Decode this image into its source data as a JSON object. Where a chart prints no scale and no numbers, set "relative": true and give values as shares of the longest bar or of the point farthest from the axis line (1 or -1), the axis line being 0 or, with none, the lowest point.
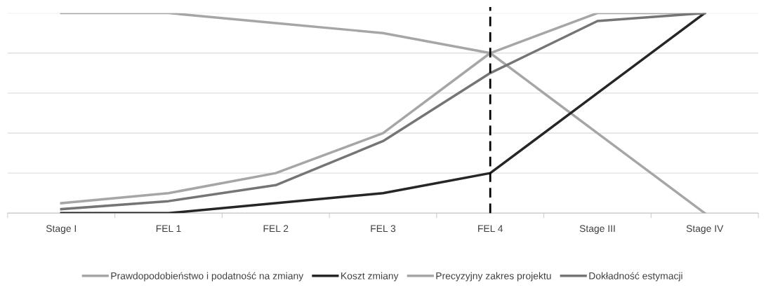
{
  "chart_data": {
    "type": "line",
    "relative": true,
    "grid": "y",
    "legend": "bottom",
    "tick_labels": "x",
    "line_style": "solid",
    "marker": "none",
    "categories": [
      "Stage I",
      "FEL 1",
      "FEL 2",
      "FEL 3",
      "FEL 4",
      "Stage III",
      "Stage IV"
    ],
    "series": [
      {
        "name": "Prawdopodobieństwo i podatność na zmiany",
        "color": "#a6a6a6",
        "values": [
          1,
          1,
          0.95,
          0.9,
          0.8,
          0.4,
          0
        ]
      },
      {
        "name": "Koszt zmiany",
        "color": "#262626",
        "values": [
          0,
          0,
          0.05,
          0.1,
          0.2,
          0.6,
          1
        ]
      },
      {
        "name": "Precyzyjny zakres projektu",
        "color": "#a6a6a6",
        "values": [
          0.05,
          0.1,
          0.2,
          0.4,
          0.8,
          1,
          1
        ]
      },
      {
        "name": "Dokładność estymacji",
        "color": "#757575",
        "values": [
          0.02,
          0.06,
          0.14,
          0.36,
          0.7,
          0.96,
          1
        ]
      }
    ],
    "ref_lines": [
      {
        "axis": "x",
        "value": "FEL 4",
        "color": "#000000",
        "line_style": "dashed"
      }
    ]
  }
}
